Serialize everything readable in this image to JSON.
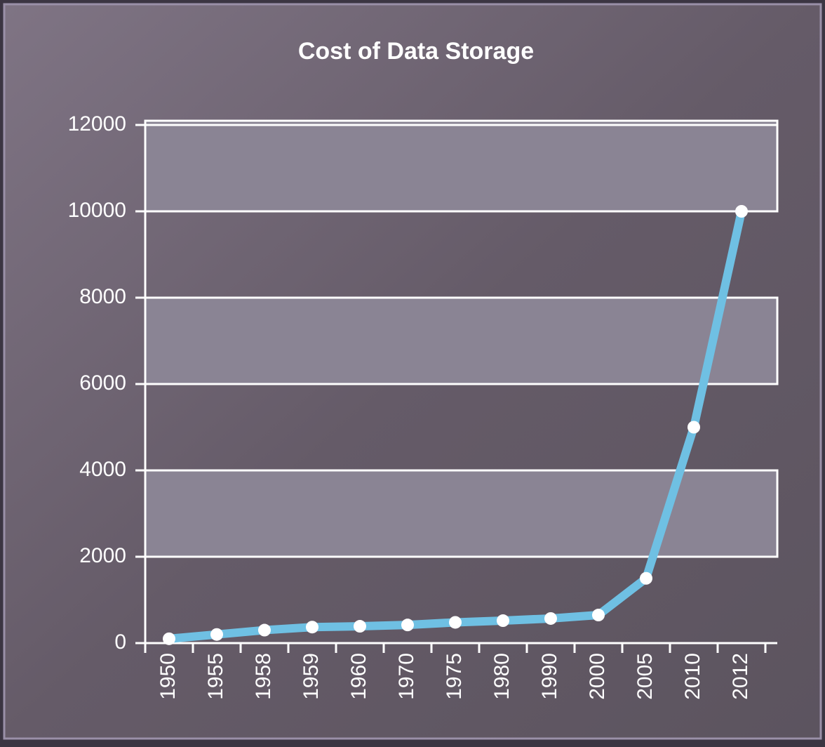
{
  "chart_data": {
    "type": "line",
    "title": "Cost of Data Storage",
    "categories": [
      "1950",
      "1955",
      "1958",
      "1959",
      "1960",
      "1970",
      "1975",
      "1980",
      "1990",
      "2000",
      "2005",
      "2010",
      "2012"
    ],
    "values": [
      100,
      200,
      300,
      370,
      390,
      420,
      480,
      520,
      570,
      650,
      1500,
      5000,
      10000
    ],
    "color": "#6fc0e3",
    "ylim": [
      0,
      12000
    ],
    "yticks": [
      0,
      2000,
      4000,
      6000,
      8000,
      10000,
      12000
    ],
    "grid": true
  }
}
